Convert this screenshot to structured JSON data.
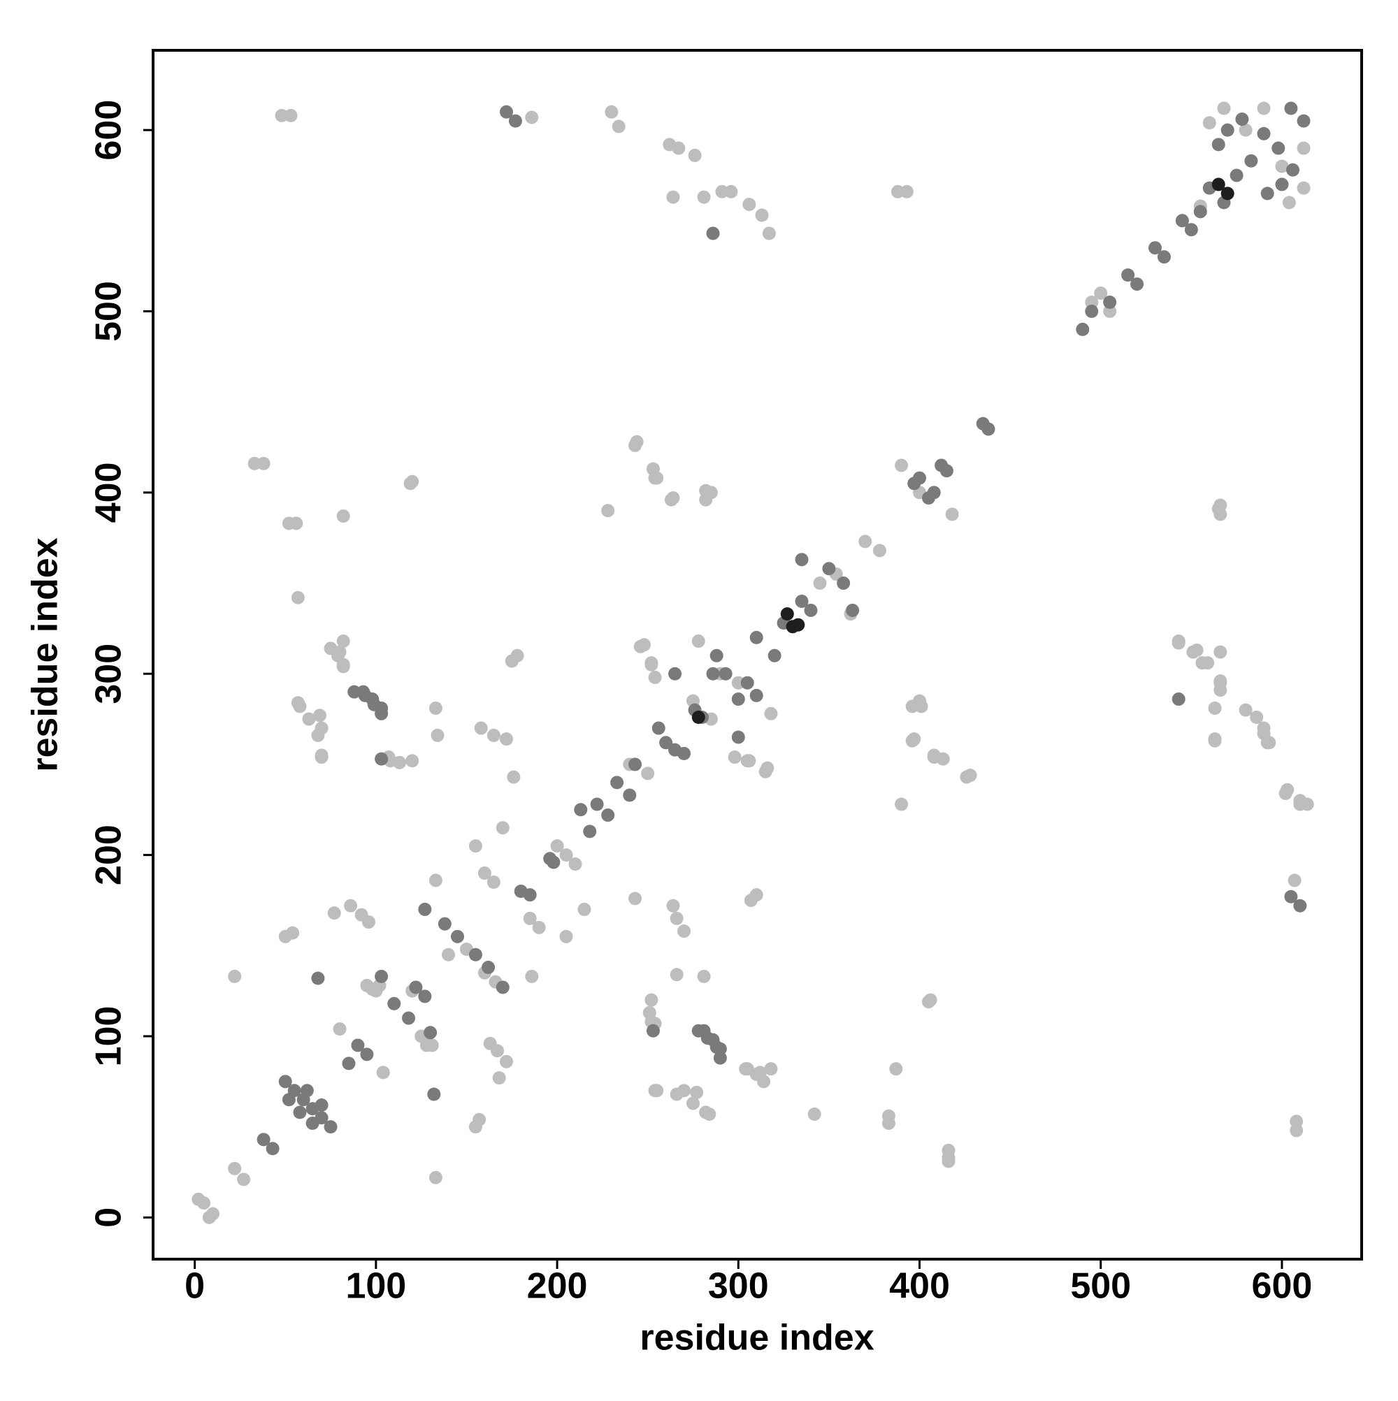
{
  "chart_data": {
    "type": "scatter",
    "x_label": "residue index",
    "y_label": "residue index",
    "xlim": [
      -23,
      644
    ],
    "ylim": [
      -23,
      644
    ],
    "xticks": [
      0,
      100,
      200,
      300,
      400,
      500,
      600
    ],
    "yticks": [
      0,
      100,
      200,
      300,
      400,
      500,
      600
    ],
    "grid": false,
    "series": [
      {
        "color": "#bdbdbd",
        "x": [
          2,
          5,
          10,
          8,
          22,
          27,
          48,
          53,
          608,
          608,
          22,
          133,
          33,
          38,
          416,
          416,
          52,
          56,
          383,
          383,
          57,
          342,
          50,
          54,
          155,
          157,
          57,
          63,
          69,
          284,
          275,
          277,
          70,
          254,
          77,
          168,
          75,
          79,
          82,
          314,
          310,
          305,
          82,
          387,
          86,
          92,
          96,
          172,
          167,
          163,
          98,
          102,
          104,
          80,
          108,
          113,
          252,
          251,
          119,
          405,
          133,
          134,
          281,
          266,
          133,
          186,
          125,
          128,
          131,
          100,
          95,
          158,
          165,
          172,
          270,
          266,
          264,
          175,
          178,
          307,
          310,
          176,
          243,
          185,
          190,
          165,
          160,
          205,
          155,
          200,
          205,
          210,
          215,
          170,
          228,
          390,
          230,
          234,
          610,
          602,
          243,
          426,
          255,
          408,
          264,
          397,
          246,
          252,
          315,
          305,
          262,
          267,
          276,
          592,
          590,
          586,
          264,
          563,
          281,
          563,
          291,
          296,
          566,
          566,
          306,
          313,
          317,
          559,
          553,
          543,
          285,
          400,
          298,
          306,
          316,
          254,
          252,
          248,
          318,
          278,
          304,
          312,
          318,
          82,
          80,
          82,
          266,
          270,
          68,
          70,
          252,
          254,
          120,
          107,
          255,
          70,
          282,
          58,
          388,
          393,
          566,
          566,
          396,
          401,
          282,
          282,
          396,
          263,
          406,
          120,
          416,
          408,
          413,
          254,
          253,
          428,
          244,
          543,
          551,
          556,
          566,
          566,
          565,
          563,
          580,
          590,
          593,
          603,
          610,
          614,
          607,
          186,
          370,
          378,
          354,
          362,
          390,
          400,
          418,
          345,
          120,
          140,
          150,
          160,
          166,
          240,
          250,
          275,
          285,
          290,
          300,
          505,
          495,
          500,
          545,
          555,
          580,
          600,
          590,
          612,
          612,
          568,
          604,
          560
        ],
        "values": [
          10,
          8,
          2,
          0,
          27,
          21,
          608,
          608,
          48,
          53,
          133,
          22,
          416,
          416,
          33,
          37,
          383,
          383,
          52,
          56,
          342,
          57,
          155,
          157,
          50,
          54,
          284,
          275,
          277,
          57,
          63,
          69,
          254,
          70,
          168,
          77,
          314,
          310,
          305,
          75,
          79,
          82,
          387,
          82,
          172,
          167,
          163,
          86,
          92,
          96,
          126,
          128,
          80,
          104,
          252,
          251,
          108,
          113,
          405,
          119,
          281,
          266,
          133,
          134,
          186,
          133,
          100,
          95,
          95,
          125,
          128,
          270,
          266,
          264,
          158,
          165,
          172,
          307,
          310,
          175,
          178,
          243,
          176,
          165,
          160,
          185,
          190,
          155,
          205,
          205,
          200,
          195,
          170,
          215,
          390,
          228,
          610,
          602,
          230,
          234,
          426,
          243,
          408,
          255,
          397,
          264,
          315,
          305,
          246,
          252,
          592,
          590,
          586,
          262,
          267,
          276,
          563,
          264,
          563,
          281,
          566,
          566,
          291,
          296,
          559,
          553,
          543,
          306,
          313,
          317,
          400,
          285,
          254,
          252,
          248,
          298,
          306,
          316,
          278,
          318,
          82,
          80,
          82,
          304,
          312,
          318,
          68,
          70,
          266,
          270,
          120,
          107,
          252,
          254,
          70,
          255,
          58,
          282,
          566,
          566,
          388,
          393,
          282,
          282,
          396,
          401,
          263,
          396,
          120,
          406,
          31,
          254,
          253,
          408,
          413,
          244,
          428,
          318,
          312,
          306,
          312,
          295,
          391,
          263,
          280,
          270,
          262,
          236,
          228,
          228,
          186,
          607,
          373,
          368,
          355,
          333,
          415,
          400,
          388,
          350,
          125,
          145,
          148,
          135,
          130,
          250,
          245,
          285,
          275,
          300,
          295,
          500,
          505,
          510,
          550,
          558,
          600,
          580,
          612,
          590,
          568,
          612,
          560,
          604
        ]
      },
      {
        "color": "#7a7a7a",
        "x": [
          38,
          43,
          50,
          55,
          60,
          65,
          70,
          75,
          52,
          65,
          58,
          62,
          70,
          68,
          132,
          85,
          90,
          95,
          88,
          94,
          99,
          103,
          290,
          288,
          283,
          281,
          103,
          253,
          103,
          110,
          118,
          122,
          127,
          130,
          138,
          145,
          155,
          162,
          172,
          177,
          610,
          605,
          170,
          127,
          180,
          185,
          196,
          198,
          213,
          218,
          222,
          228,
          233,
          240,
          243,
          256,
          260,
          265,
          270,
          276,
          280,
          286,
          300,
          293,
          305,
          310,
          320,
          325,
          335,
          340,
          350,
          358,
          286,
          543,
          286,
          290,
          98,
          93,
          278,
          103,
          265,
          300,
          310,
          288,
          363,
          335,
          400,
          408,
          412,
          415,
          405,
          397,
          435,
          438,
          490,
          495,
          505,
          515,
          520,
          530,
          535,
          545,
          550,
          555,
          570,
          600,
          590,
          598,
          605,
          612,
          606,
          578,
          592,
          565,
          560,
          568,
          575,
          583
        ],
        "values": [
          43,
          38,
          75,
          70,
          65,
          60,
          55,
          50,
          65,
          52,
          58,
          70,
          62,
          132,
          68,
          85,
          95,
          90,
          290,
          288,
          283,
          281,
          88,
          94,
          99,
          103,
          253,
          103,
          133,
          118,
          110,
          127,
          122,
          102,
          162,
          155,
          145,
          138,
          610,
          605,
          172,
          177,
          127,
          170,
          180,
          178,
          198,
          196,
          225,
          213,
          228,
          222,
          240,
          233,
          250,
          270,
          262,
          258,
          256,
          280,
          276,
          300,
          286,
          300,
          295,
          320,
          310,
          328,
          340,
          335,
          358,
          350,
          543,
          286,
          98,
          93,
          286,
          290,
          103,
          278,
          300,
          265,
          288,
          310,
          335,
          363,
          408,
          400,
          415,
          412,
          397,
          405,
          438,
          435,
          490,
          500,
          505,
          520,
          515,
          535,
          530,
          550,
          545,
          555,
          600,
          570,
          598,
          590,
          612,
          605,
          578,
          606,
          565,
          592,
          568,
          560,
          575,
          583
        ]
      },
      {
        "color": "#1e1e1e",
        "x": [
          327,
          333,
          278,
          565,
          570,
          330
        ],
        "values": [
          333,
          327,
          276,
          570,
          565,
          326
        ]
      }
    ]
  }
}
